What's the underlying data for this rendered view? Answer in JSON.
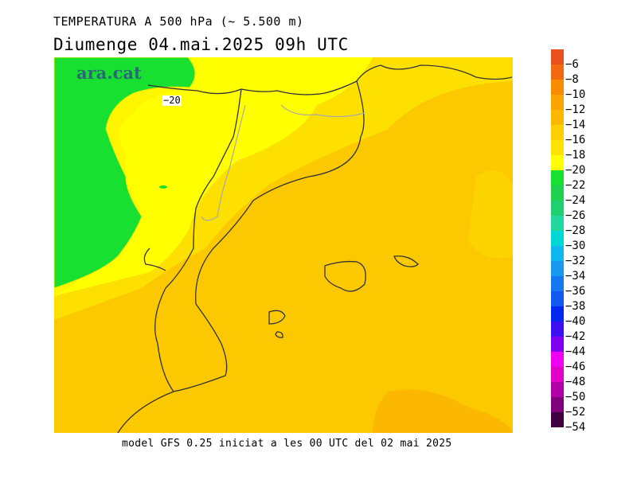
{
  "header": {
    "title": "TEMPERATURA A 500 hPa (~ 5.500 m)",
    "subtitle": "Diumenge  04.mai.2025 09h UTC"
  },
  "map": {
    "logo": "ara.cat",
    "contour_label": "−20"
  },
  "footer": {
    "text": "model GFS 0.25 iniciat a les 00 UTC del 02 mai 2025"
  },
  "legend": {
    "labels": [
      "−6",
      "−8",
      "−10",
      "−12",
      "−14",
      "−16",
      "−18",
      "−20",
      "−22",
      "−24",
      "−26",
      "−28",
      "−30",
      "−32",
      "−34",
      "−36",
      "−38",
      "−40",
      "−42",
      "−44",
      "−46",
      "−48",
      "−50",
      "−52",
      "−54"
    ],
    "colors": [
      "#e8501e",
      "#f06a10",
      "#f88c00",
      "#faa400",
      "#fcb800",
      "#fdd000",
      "#fde400",
      "#ffff00",
      "#18e030",
      "#20d050",
      "#20d070",
      "#20d8a0",
      "#00d8d8",
      "#10b8f0",
      "#1898f0",
      "#1478f0",
      "#1058f0",
      "#0028f0",
      "#3c10f0",
      "#8000f0",
      "#f000f0",
      "#e000c8",
      "#b000a8",
      "#80007c",
      "#400040"
    ]
  }
}
